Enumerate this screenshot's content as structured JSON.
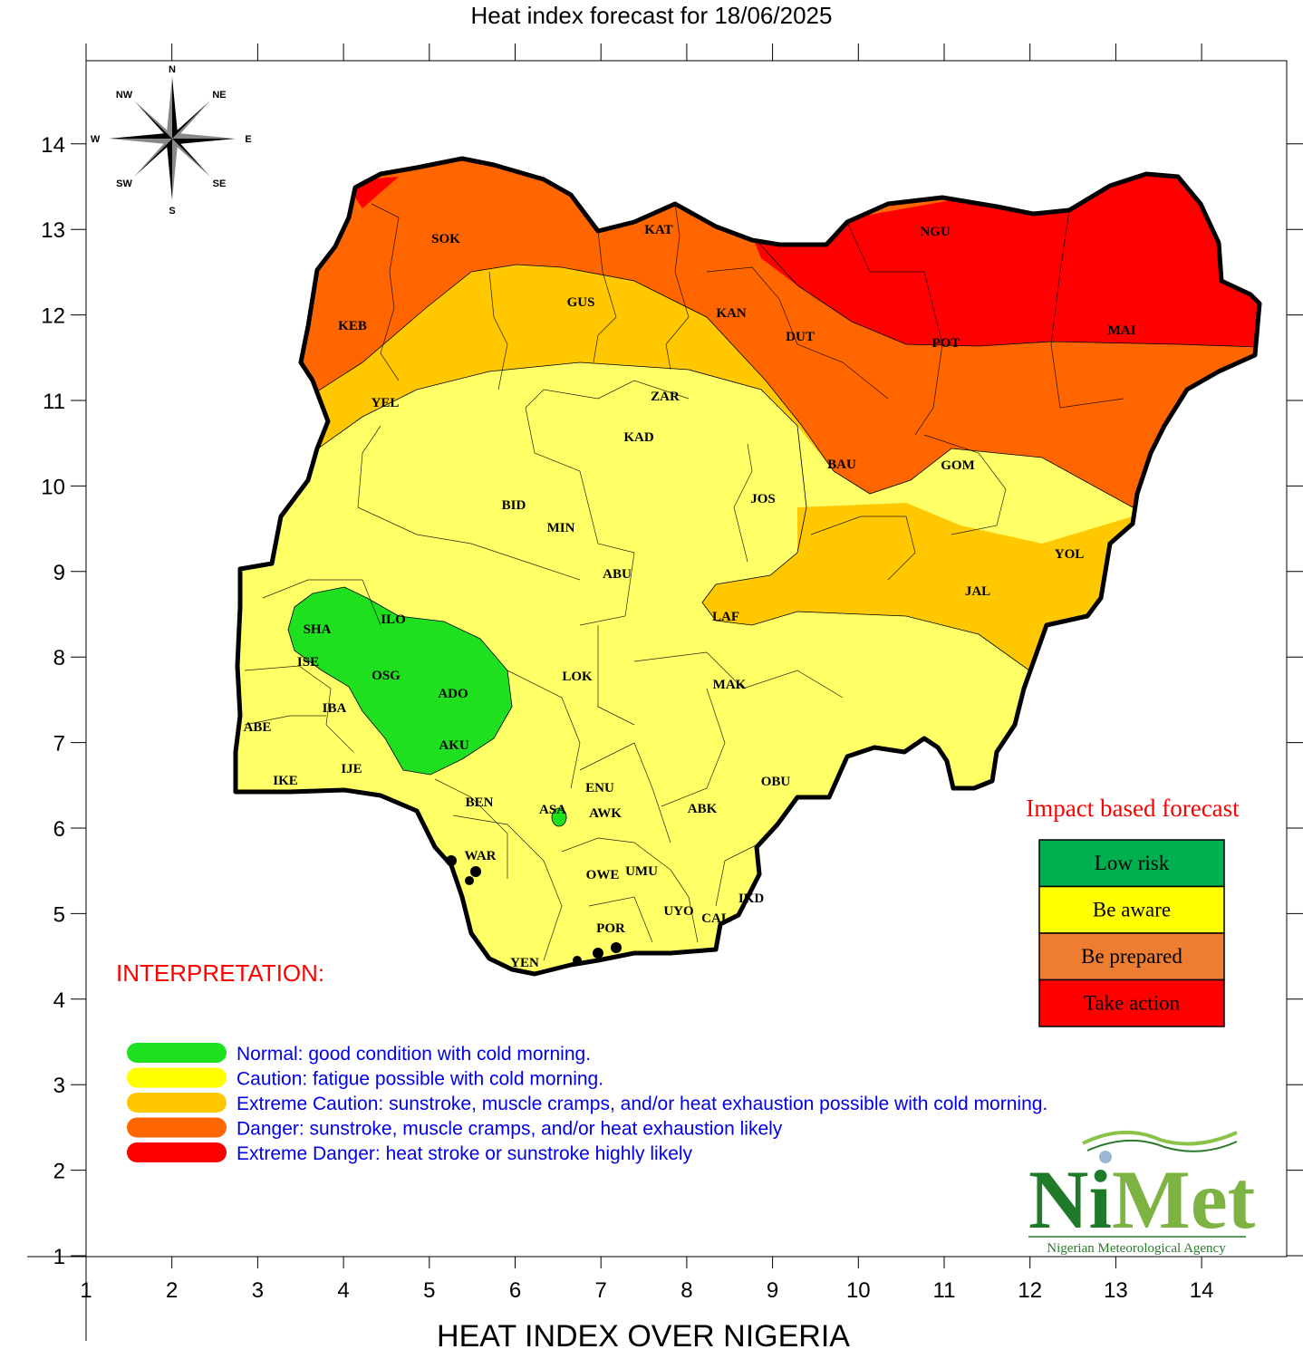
{
  "header": {
    "title": "Heat index forecast for 18/06/2025"
  },
  "footer": {
    "title": "HEAT INDEX OVER NIGERIA"
  },
  "axes": {
    "x_ticks": [
      "1",
      "2",
      "3",
      "4",
      "5",
      "6",
      "7",
      "8",
      "9",
      "10",
      "11",
      "12",
      "13",
      "14"
    ],
    "y_ticks": [
      "14",
      "13",
      "12",
      "11",
      "10",
      "9",
      "8",
      "7",
      "6",
      "5",
      "4",
      "3",
      "2",
      "1"
    ],
    "x_range": [
      1,
      15
    ],
    "y_range": [
      1,
      15
    ]
  },
  "compass": {
    "n": "N",
    "s": "S",
    "e": "E",
    "w": "W",
    "ne": "NE",
    "nw": "NW",
    "se": "SE",
    "sw": "SW"
  },
  "states": [
    "SOK",
    "KAT",
    "NGU",
    "KEB",
    "GUS",
    "KAN",
    "DUT",
    "POT",
    "MAI",
    "YEL",
    "ZAR",
    "KAD",
    "BAU",
    "GOM",
    "JOS",
    "BID",
    "MIN",
    "ABU",
    "YOL",
    "SHA",
    "ILO",
    "LAF",
    "JAL",
    "ISE",
    "OSG",
    "ADO",
    "LOK",
    "MAK",
    "IBA",
    "ABE",
    "AKU",
    "IJE",
    "IKE",
    "ENU",
    "OBU",
    "BEN",
    "ASA",
    "AWK",
    "ABK",
    "WAR",
    "OWE",
    "UMU",
    "IKD",
    "UYO",
    "CAL",
    "POR",
    "YEN"
  ],
  "colors": {
    "normal": "#1fe01f",
    "caution": "#ffff66",
    "extreme_caution": "#ffc800",
    "danger": "#ff6600",
    "extreme_danger": "#ff0000",
    "low_risk": "#00b050",
    "be_aware": "#ffff00",
    "be_prepared": "#ed7d31",
    "take_action": "#ff0000"
  },
  "interpretation": {
    "title": "INTERPRETATION:",
    "items": [
      {
        "text": "Normal: good condition with cold morning.",
        "color": "#1fe01f"
      },
      {
        "text": "Caution: fatigue possible  with cold morning.",
        "color": "#ffff00"
      },
      {
        "text": "Extreme Caution: sunstroke, muscle cramps, and/or heat exhaustion possible  with cold morning.",
        "color": "#ffc800"
      },
      {
        "text": "Danger: sunstroke, muscle cramps, and/or heat exhaustion likely",
        "color": "#ff6600"
      },
      {
        "text": "Extreme Danger: heat stroke or sunstroke highly likely",
        "color": "#ff0000"
      }
    ]
  },
  "impact": {
    "title": "Impact based forecast",
    "levels": [
      {
        "label": "Low risk",
        "color": "#00b050"
      },
      {
        "label": "Be aware",
        "color": "#ffff00"
      },
      {
        "label": "Be prepared",
        "color": "#ed7d31"
      },
      {
        "label": "Take action",
        "color": "#ff0000"
      }
    ]
  },
  "logo": {
    "name": "NiMet",
    "subtitle": "Nigerian Meteorological Agency"
  }
}
